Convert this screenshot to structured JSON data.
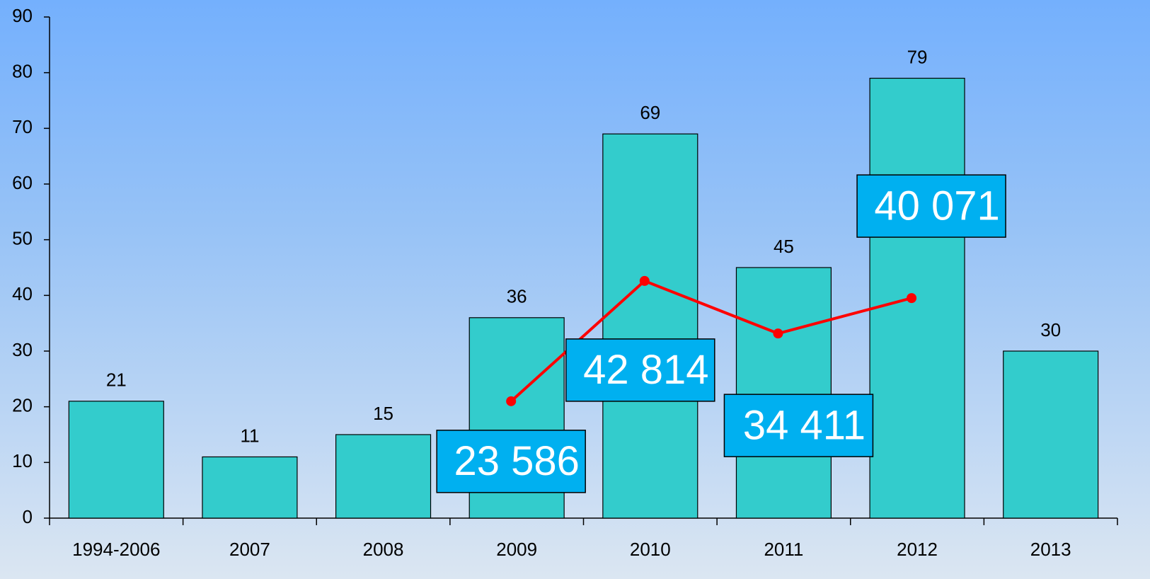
{
  "chart_data": {
    "type": "bar",
    "categories": [
      "1994-2006",
      "2007",
      "2008",
      "2009",
      "2010",
      "2011",
      "2012",
      "2013"
    ],
    "series": [
      {
        "type": "bar",
        "color": "#33cccc",
        "values": [
          21,
          11,
          15,
          36,
          69,
          45,
          79,
          30
        ]
      },
      {
        "type": "line",
        "axis": "y2",
        "color": "#ff0000",
        "values": [
          null,
          null,
          null,
          23586,
          42814,
          34411,
          40071,
          null
        ],
        "value_labels": [
          null,
          null,
          null,
          "23 586",
          "42 814",
          "34 411",
          "40 071",
          null
        ]
      }
    ],
    "ylim": [
      0,
      90
    ],
    "yticks": [
      0,
      10,
      20,
      30,
      40,
      50,
      60,
      70,
      80,
      90
    ],
    "y2lim": [
      4900,
      85000
    ]
  }
}
